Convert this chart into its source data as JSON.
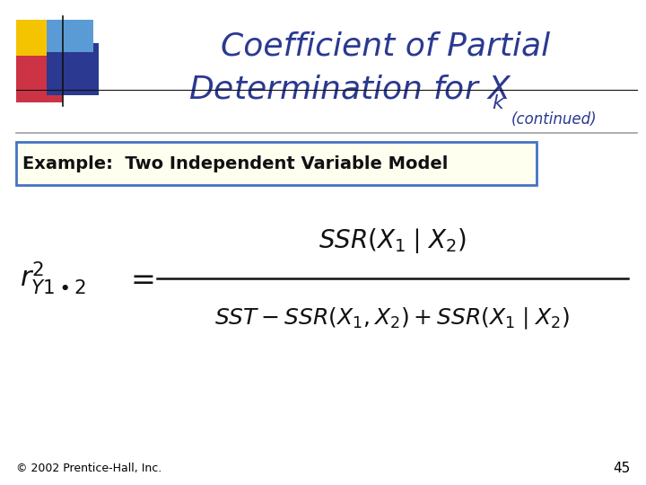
{
  "bg_color": "#ffffff",
  "title_line1": "Coefficient of Partial",
  "title_line2": "Determination for ",
  "title_color": "#2B3990",
  "example_text": "Example:  Two Independent Variable Model",
  "example_box_facecolor": "#FFFFF0",
  "example_box_edgecolor": "#4472C4",
  "footer_text": "© 2002 Prentice-Hall, Inc.",
  "page_number": "45",
  "footer_color": "#000000",
  "line_color": "#A0A0A0",
  "logo_colors": {
    "yellow": "#F5C400",
    "red": "#CC3344",
    "blue_dark": "#2B3990",
    "blue_light": "#5B9BD5"
  }
}
